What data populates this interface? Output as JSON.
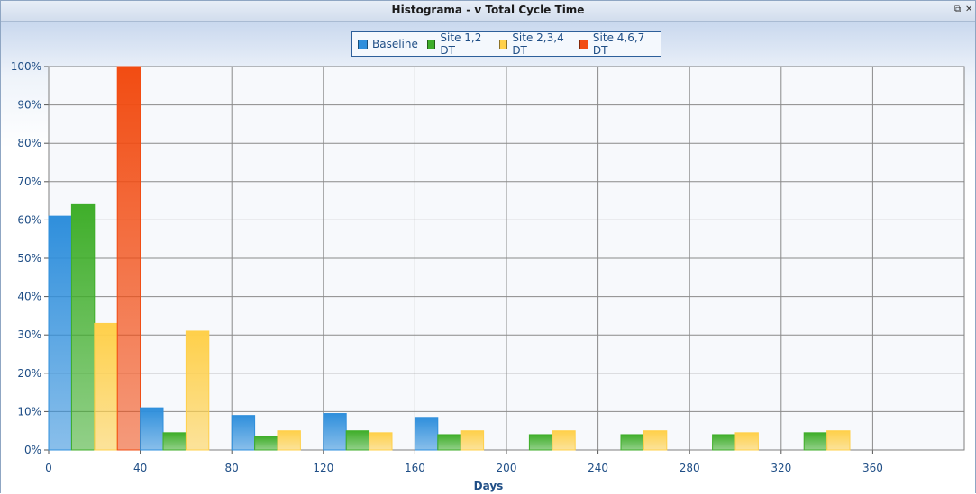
{
  "window": {
    "title": "Histograma - v Total Cycle Time",
    "restore_glyph": "⧉",
    "close_glyph": "✕"
  },
  "colors": {
    "Baseline": "#2f8fdc",
    "Site 1,2 DT": "#3fae2a",
    "Site 2,3,4 DT": "#ffd04a",
    "Site 4,6,7 DT": "#f24c12"
  },
  "chart_data": {
    "type": "bar",
    "xlabel": "Days",
    "ylabel": "",
    "xlim": [
      0,
      400
    ],
    "ylim": [
      0,
      100
    ],
    "bin_width": 40,
    "bin_starts": [
      0,
      40,
      80,
      120,
      160,
      200,
      240,
      280,
      320
    ],
    "x_ticks": [
      "0",
      "40",
      "80",
      "120",
      "160",
      "200",
      "240",
      "280",
      "320",
      "360"
    ],
    "y_ticks": [
      "0%",
      "10%",
      "20%",
      "30%",
      "40%",
      "50%",
      "60%",
      "70%",
      "80%",
      "90%",
      "100%"
    ],
    "legend_position": "top-center",
    "series": [
      {
        "name": "Baseline",
        "values": [
          61,
          11,
          9,
          9.5,
          8.5,
          0,
          0,
          0,
          0
        ]
      },
      {
        "name": "Site 1,2 DT",
        "values": [
          64,
          4.5,
          3.5,
          5,
          4,
          4,
          4,
          4,
          4.5
        ]
      },
      {
        "name": "Site 2,3,4 DT",
        "values": [
          33,
          31,
          5,
          4.5,
          5,
          5,
          5,
          4.5,
          5
        ]
      },
      {
        "name": "Site 4,6,7 DT",
        "values": [
          100,
          0,
          0,
          0,
          0,
          0,
          0,
          0,
          0
        ]
      }
    ]
  }
}
